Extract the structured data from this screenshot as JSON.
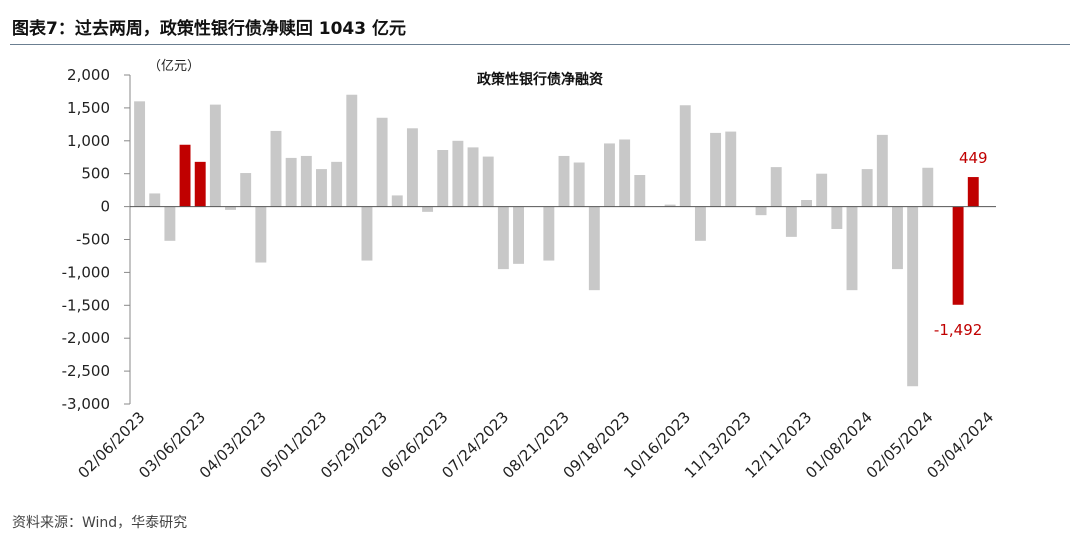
{
  "header": {
    "title": "图表7：过去两周，政策性银行债净赎回 1043 亿元"
  },
  "source": {
    "text": "资料来源：Wind，华泰研究"
  },
  "chart_data": {
    "type": "bar",
    "title": "政策性银行债净融资",
    "unit": "（亿元）",
    "ylim": [
      -3000,
      2000
    ],
    "yticks": [
      2000,
      1500,
      1000,
      500,
      0,
      -500,
      -1000,
      -1500,
      -2000,
      -2500,
      -3000
    ],
    "ytick_labels": [
      "2,000",
      "1,500",
      "1,000",
      "500",
      "0",
      "-500",
      "-1,000",
      "-1,500",
      "-2,000",
      "-2,500",
      "-3,000"
    ],
    "categories": [
      "02/06/2023",
      "02/13/2023",
      "02/20/2023",
      "02/27/2023",
      "03/06/2023",
      "03/13/2023",
      "03/20/2023",
      "03/27/2023",
      "04/03/2023",
      "04/10/2023",
      "04/17/2023",
      "04/24/2023",
      "05/01/2023",
      "05/08/2023",
      "05/15/2023",
      "05/22/2023",
      "05/29/2023",
      "06/05/2023",
      "06/12/2023",
      "06/19/2023",
      "06/26/2023",
      "07/03/2023",
      "07/10/2023",
      "07/17/2023",
      "07/24/2023",
      "07/31/2023",
      "08/07/2023",
      "08/14/2023",
      "08/21/2023",
      "08/28/2023",
      "09/04/2023",
      "09/11/2023",
      "09/18/2023",
      "09/25/2023",
      "10/02/2023",
      "10/09/2023",
      "10/16/2023",
      "10/23/2023",
      "10/30/2023",
      "11/06/2023",
      "11/13/2023",
      "11/20/2023",
      "11/27/2023",
      "12/04/2023",
      "12/11/2023",
      "12/18/2023",
      "12/25/2023",
      "01/01/2024",
      "01/08/2024",
      "01/15/2024",
      "01/22/2024",
      "01/29/2024",
      "02/05/2024",
      "02/12/2024",
      "02/19/2024",
      "02/26/2024",
      "03/04/2024"
    ],
    "tick_labels": [
      "02/06/2023",
      "03/06/2023",
      "04/03/2023",
      "05/01/2023",
      "05/29/2023",
      "06/26/2023",
      "07/24/2023",
      "08/21/2023",
      "09/18/2023",
      "10/16/2023",
      "11/13/2023",
      "12/11/2023",
      "01/08/2024",
      "02/05/2024",
      "03/04/2024"
    ],
    "values": [
      1600,
      200,
      -520,
      940,
      680,
      1550,
      -50,
      510,
      -850,
      1150,
      740,
      770,
      570,
      680,
      1700,
      -820,
      1350,
      170,
      1190,
      -80,
      860,
      1000,
      900,
      760,
      -950,
      -870,
      0,
      -820,
      770,
      670,
      -1270,
      960,
      1020,
      480,
      0,
      30,
      1540,
      -520,
      1120,
      1140,
      0,
      -130,
      600,
      -460,
      100,
      500,
      -340,
      -1270,
      570,
      1090,
      -950,
      -2730,
      590,
      0,
      -1492,
      449,
      0
    ],
    "highlight_indices": [
      3,
      4,
      54,
      55
    ],
    "colors": {
      "default": "#c8c8c8",
      "highlight": "#c00000",
      "label": "#c00000"
    },
    "data_labels": [
      {
        "text": "449",
        "index": 55,
        "value": 449
      },
      {
        "text": "-1,492",
        "index": 54,
        "value": -1492
      }
    ]
  }
}
